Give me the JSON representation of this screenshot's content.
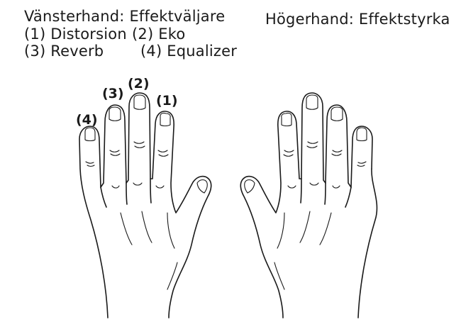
{
  "left_hand": {
    "title": "Vänsterhand: Effektväljare",
    "options": [
      {
        "number": "(1)",
        "label": "Distorsion"
      },
      {
        "number": "(2)",
        "label": "Eko"
      },
      {
        "number": "(3)",
        "label": "Reverb"
      },
      {
        "number": "(4)",
        "label": "Equalizer"
      }
    ],
    "finger_labels": [
      "(1)",
      "(2)",
      "(3)",
      "(4)"
    ]
  },
  "right_hand": {
    "title": "Högerhand: Effektstyrka"
  },
  "icons": [
    "left-hand-icon",
    "right-hand-icon"
  ]
}
